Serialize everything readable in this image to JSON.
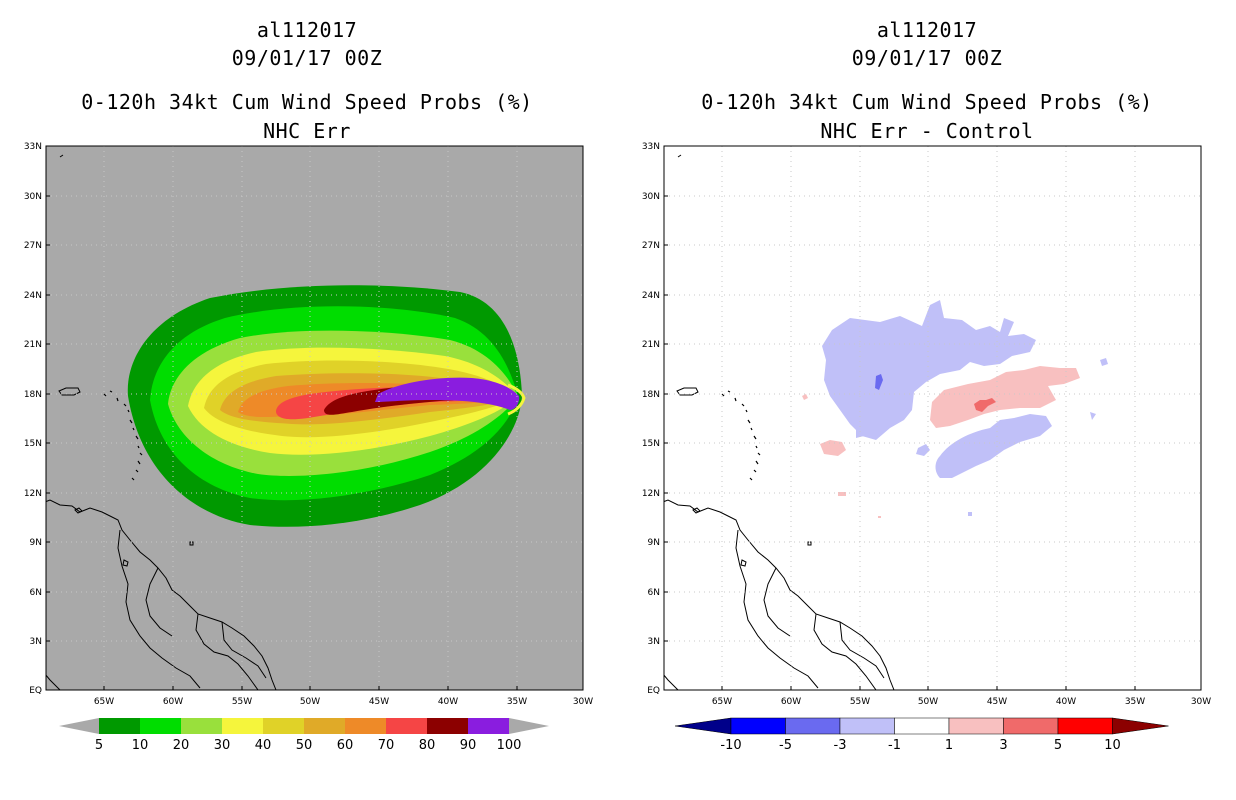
{
  "left": {
    "storm_id": "al112017",
    "datetime": "09/01/17 00Z",
    "title": "0-120h 34kt Cum Wind Speed Probs (%)",
    "subtitle": "NHC Err"
  },
  "right": {
    "storm_id": "al112017",
    "datetime": "09/01/17 00Z",
    "title": "0-120h 34kt Cum Wind Speed Probs (%)",
    "subtitle": "NHC Err - Control"
  },
  "lat_ticks": [
    "33N",
    "30N",
    "27N",
    "24N",
    "21N",
    "18N",
    "15N",
    "12N",
    "9N",
    "6N",
    "3N",
    "EQ"
  ],
  "lon_ticks": [
    "65W",
    "60W",
    "55W",
    "50W",
    "45W",
    "40W",
    "35W",
    "30W"
  ],
  "left_legend": {
    "labels": [
      "5",
      "10",
      "20",
      "30",
      "40",
      "50",
      "60",
      "70",
      "80",
      "90",
      "100"
    ],
    "colors": [
      "#009900",
      "#00dd00",
      "#99e03c",
      "#f5f53c",
      "#e0d228",
      "#e0aa28",
      "#ee8a28",
      "#f54545",
      "#8c0000",
      "#8a1ddf"
    ]
  },
  "right_legend": {
    "labels": [
      "-10",
      "-5",
      "-3",
      "-1",
      "1",
      "3",
      "5",
      "10"
    ],
    "colors": [
      "#0000ff",
      "#6a6af0",
      "#c0c0f8",
      "#ffffff",
      "#f8c0c0",
      "#f06a6a",
      "#ff0000"
    ],
    "end_colors": [
      "#00008a",
      "#8c0000"
    ]
  },
  "colors": {
    "ocean_left": "#a9a9a9",
    "grid": "#c8c8c8"
  }
}
